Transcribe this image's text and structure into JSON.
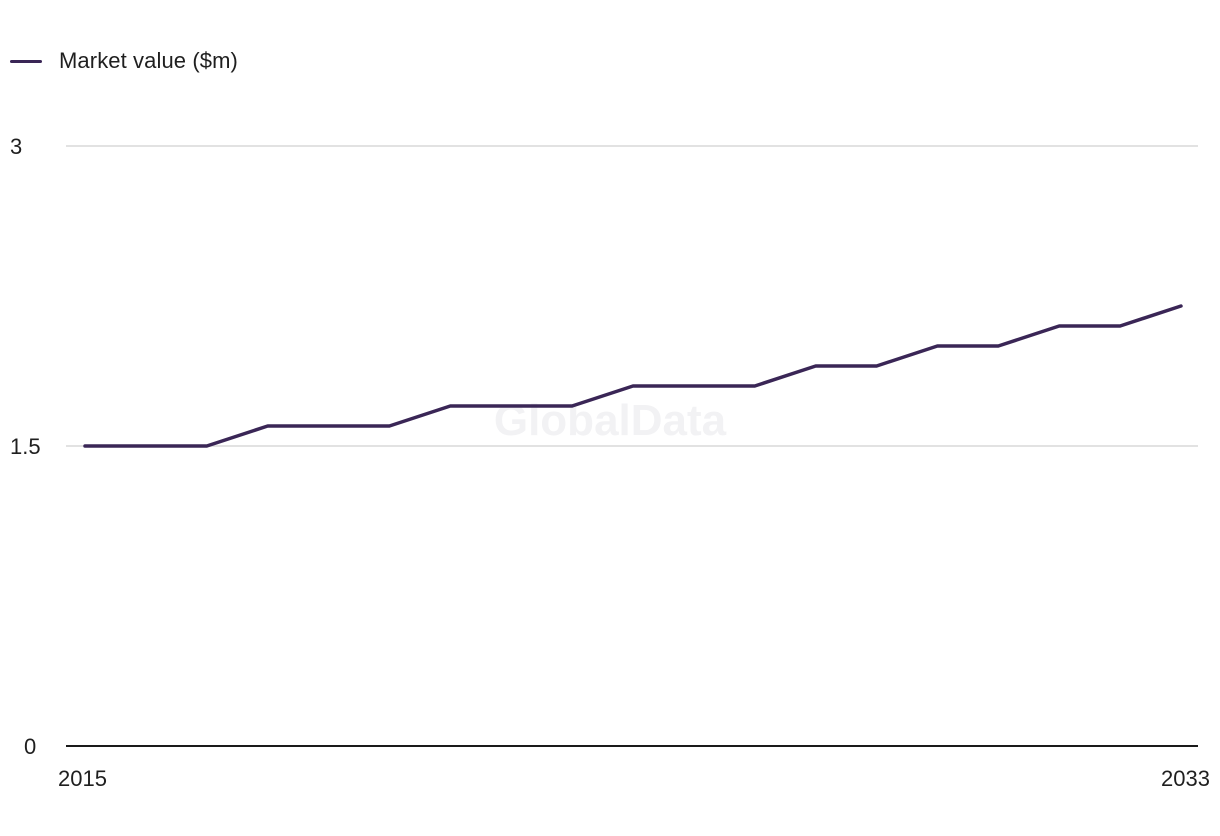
{
  "chart_data": {
    "type": "line",
    "title": "",
    "xlabel": "",
    "ylabel": "",
    "x": [
      2015,
      2016,
      2017,
      2018,
      2019,
      2020,
      2021,
      2022,
      2023,
      2024,
      2025,
      2026,
      2027,
      2028,
      2029,
      2030,
      2031,
      2032,
      2033
    ],
    "series": [
      {
        "name": "Market value ($m)",
        "color": "#3a2656",
        "values": [
          1.5,
          1.5,
          1.5,
          1.6,
          1.6,
          1.6,
          1.7,
          1.7,
          1.7,
          1.8,
          1.8,
          1.8,
          1.9,
          1.9,
          2.0,
          2.0,
          2.1,
          2.1,
          2.2
        ]
      }
    ],
    "ylim": [
      0,
      3
    ],
    "yticks": [
      "0",
      "1.5",
      "3"
    ],
    "xticks": [
      "2015",
      "2033"
    ],
    "grid": true,
    "legend": "top-left"
  },
  "legend": {
    "label": "Market value ($m)"
  },
  "watermark": "GlobalData",
  "colors": {
    "line": "#3a2656",
    "grid": "#d9d9d9",
    "axis": "#1a1a1a"
  }
}
